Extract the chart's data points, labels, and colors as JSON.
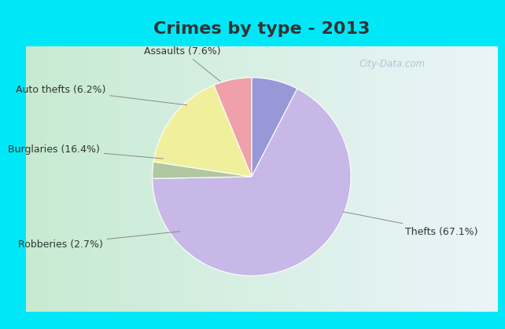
{
  "title": "Crimes by type - 2013",
  "slices": [
    {
      "label": "Thefts (67.1%)",
      "value": 67.1,
      "color": "#c8b8e8"
    },
    {
      "label": "Assaults (7.6%)",
      "value": 7.6,
      "color": "#9898d8"
    },
    {
      "label": "Auto thefts (6.2%)",
      "value": 6.2,
      "color": "#f0a0a8"
    },
    {
      "label": "Burglaries (16.4%)",
      "value": 16.4,
      "color": "#f0f09c"
    },
    {
      "label": "Robberies (2.7%)",
      "value": 2.7,
      "color": "#b0c8a0"
    }
  ],
  "title_bg": "#00e8f8",
  "main_bg_left": "#c8e8d0",
  "main_bg_right": "#e8f4f8",
  "title_fontsize": 16,
  "title_color": "#333333",
  "label_fontsize": 9,
  "watermark": "City-Data.com"
}
